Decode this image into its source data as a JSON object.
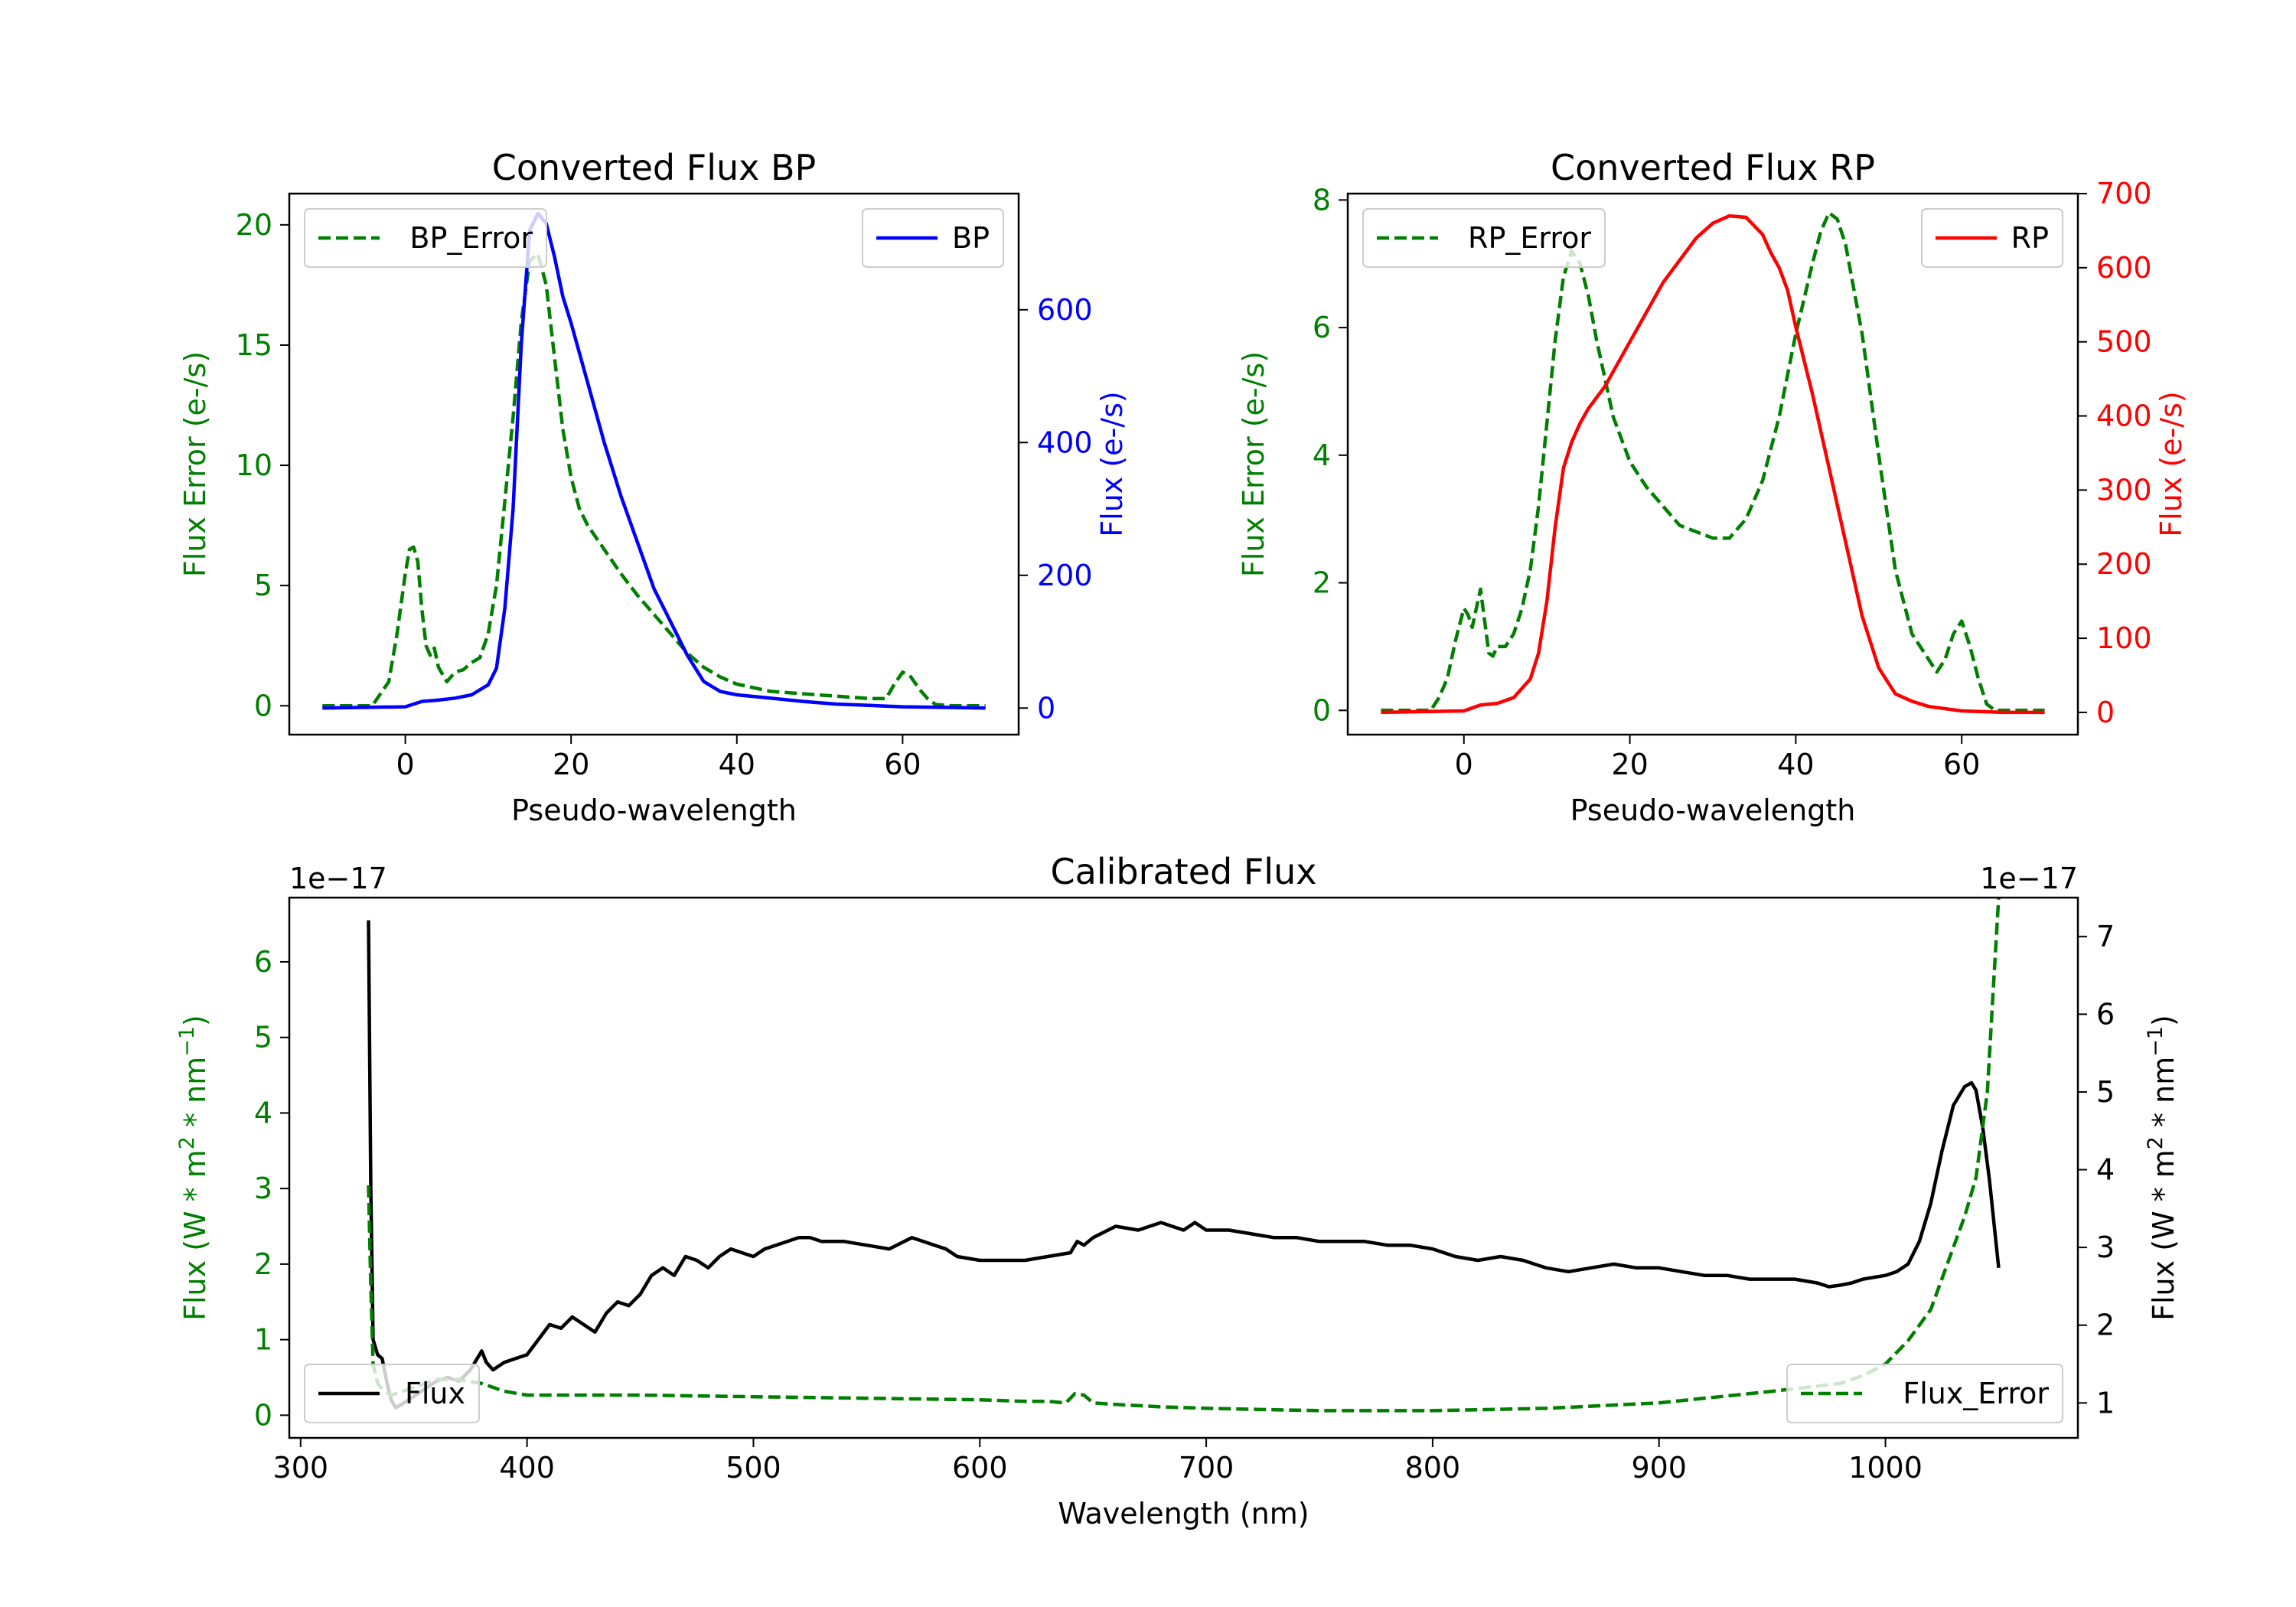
{
  "chart_data": [
    {
      "type": "line",
      "title": "Converted Flux BP",
      "xlabel": "Pseudo-wavelength",
      "ylabel_left": "Flux Error (e-/s)",
      "ylabel_right": "Flux (e-/s)",
      "xlim": [
        -14,
        74
      ],
      "ylim_left": [
        -1.2,
        21.3
      ],
      "ylim_right": [
        -40,
        775
      ],
      "xticks": [
        0,
        20,
        40,
        60
      ],
      "yticks_left": [
        0,
        5,
        10,
        15,
        20
      ],
      "yticks_right": [
        0,
        200,
        400,
        600
      ],
      "left_color": "#007f00",
      "right_color": "#0000ff",
      "legend_left": {
        "label": "BP_Error",
        "placement": "upper left",
        "style": "dashed",
        "color": "#007f00"
      },
      "legend_right": {
        "label": "BP",
        "placement": "upper right",
        "style": "solid",
        "color": "#0000ff"
      },
      "series": [
        {
          "name": "BP_Error",
          "axis": "left",
          "color": "#007f00",
          "dash": true,
          "x": [
            -10,
            -4,
            -2,
            -1,
            0,
            0.5,
            1,
            1.5,
            2,
            2.5,
            3,
            3.5,
            4,
            5,
            6,
            7,
            8,
            9,
            10,
            11,
            12,
            13,
            14,
            15,
            16,
            17,
            18,
            19,
            20,
            21,
            22,
            24,
            26,
            28,
            30,
            32,
            34,
            36,
            38,
            40,
            42,
            44,
            46,
            48,
            50,
            52,
            54,
            56,
            58,
            59,
            60,
            61,
            62,
            63,
            64,
            66,
            68,
            70
          ],
          "y": [
            0,
            0,
            1,
            3,
            5.5,
            6.5,
            6.6,
            6.0,
            4.0,
            2.5,
            2.1,
            2.4,
            1.6,
            1.0,
            1.4,
            1.5,
            1.8,
            2.0,
            3.0,
            5.0,
            8.5,
            12.0,
            16.0,
            18.5,
            18.8,
            17.5,
            14.5,
            11.5,
            9.5,
            8.2,
            7.5,
            6.5,
            5.5,
            4.6,
            3.8,
            3.0,
            2.2,
            1.6,
            1.2,
            0.9,
            0.75,
            0.6,
            0.55,
            0.5,
            0.45,
            0.4,
            0.35,
            0.3,
            0.3,
            0.9,
            1.4,
            1.2,
            0.7,
            0.3,
            0.05,
            0,
            0,
            0
          ]
        },
        {
          "name": "BP",
          "axis": "right",
          "color": "#0000ff",
          "dash": false,
          "x": [
            -10,
            0,
            2,
            4,
            6,
            8,
            10,
            11,
            12,
            13,
            14,
            15,
            16,
            17,
            18,
            19,
            20,
            22,
            24,
            26,
            28,
            30,
            32,
            34,
            36,
            38,
            40,
            44,
            48,
            52,
            56,
            60,
            65,
            70
          ],
          "y": [
            0,
            2,
            10,
            12,
            15,
            20,
            35,
            60,
            150,
            300,
            550,
            720,
            745,
            730,
            680,
            620,
            580,
            490,
            400,
            320,
            250,
            180,
            130,
            80,
            40,
            25,
            20,
            15,
            10,
            6,
            4,
            2,
            1,
            0
          ]
        }
      ]
    },
    {
      "type": "line",
      "title": "Converted Flux RP",
      "xlabel": "Pseudo-wavelength",
      "ylabel_left": "Flux Error (e-/s)",
      "ylabel_right": "Flux (e-/s)",
      "xlim": [
        -14,
        74
      ],
      "ylim_left": [
        -0.38,
        8.1
      ],
      "ylim_right": [
        -30,
        700
      ],
      "xticks": [
        0,
        20,
        40,
        60
      ],
      "yticks_left": [
        0,
        2,
        4,
        6,
        8
      ],
      "yticks_right": [
        0,
        100,
        200,
        300,
        400,
        500,
        600,
        700
      ],
      "left_color": "#007f00",
      "right_color": "#ff0000",
      "legend_left": {
        "label": "RP_Error",
        "placement": "upper left",
        "style": "dashed",
        "color": "#007f00"
      },
      "legend_right": {
        "label": "RP",
        "placement": "upper right",
        "style": "solid",
        "color": "#ff0000"
      },
      "series": [
        {
          "name": "RP_Error",
          "axis": "left",
          "color": "#007f00",
          "dash": true,
          "x": [
            -10,
            -4,
            -3,
            -2,
            -1,
            0,
            0.5,
            1,
            1.5,
            2,
            2.5,
            3,
            3.5,
            4,
            5,
            6,
            7,
            8,
            9,
            10,
            11,
            12,
            13,
            14,
            15,
            16,
            17,
            18,
            20,
            22,
            24,
            26,
            28,
            30,
            32,
            34,
            36,
            38,
            40,
            42,
            43,
            44,
            45,
            46,
            48,
            50,
            52,
            54,
            56,
            57,
            58,
            59,
            60,
            61,
            62,
            63,
            64,
            66,
            70
          ],
          "y": [
            0,
            0,
            0.2,
            0.5,
            1.1,
            1.6,
            1.5,
            1.3,
            1.6,
            1.9,
            1.4,
            0.9,
            0.85,
            1.0,
            1.0,
            1.2,
            1.6,
            2.2,
            3.2,
            4.5,
            5.8,
            6.8,
            7.2,
            7.0,
            6.5,
            5.8,
            5.2,
            4.6,
            3.9,
            3.5,
            3.2,
            2.9,
            2.8,
            2.7,
            2.7,
            3.0,
            3.6,
            4.6,
            5.9,
            7.0,
            7.5,
            7.8,
            7.7,
            7.3,
            5.9,
            4.0,
            2.2,
            1.2,
            0.8,
            0.6,
            0.8,
            1.2,
            1.4,
            1.0,
            0.5,
            0.1,
            0,
            0,
            0
          ]
        },
        {
          "name": "RP",
          "axis": "right",
          "color": "#ff0000",
          "dash": false,
          "x": [
            -10,
            0,
            2,
            4,
            6,
            8,
            9,
            10,
            11,
            12,
            13,
            14,
            15,
            17,
            20,
            22,
            24,
            26,
            28,
            30,
            32,
            34,
            36,
            37,
            38,
            39,
            40,
            42,
            44,
            46,
            48,
            50,
            52,
            54,
            56,
            60,
            65,
            70
          ],
          "y": [
            0,
            2,
            10,
            12,
            20,
            45,
            80,
            150,
            250,
            330,
            365,
            390,
            410,
            440,
            500,
            540,
            580,
            610,
            640,
            660,
            670,
            668,
            645,
            620,
            600,
            570,
            520,
            430,
            330,
            230,
            130,
            60,
            25,
            15,
            8,
            2,
            0,
            0
          ]
        }
      ]
    },
    {
      "type": "line",
      "title": "Calibrated Flux",
      "xlabel": "Wavelength (nm)",
      "ylabel_left": "Flux (W * m",
      "ylabel_right": "Flux (W * m",
      "ylabel_sup1": "2",
      "ylabel_mid": " * nm",
      "ylabel_sup2": "−1",
      "ylabel_end": ")",
      "offset_left": "1e−17",
      "offset_right": "1e−17",
      "xlim": [
        295,
        1085
      ],
      "ylim_left": [
        -0.3,
        6.85
      ],
      "ylim_right": [
        0.55,
        7.5
      ],
      "xticks": [
        300,
        400,
        500,
        600,
        700,
        800,
        900,
        1000
      ],
      "yticks_left": [
        0,
        1,
        2,
        3,
        4,
        5,
        6
      ],
      "yticks_right": [
        1,
        2,
        3,
        4,
        5,
        6,
        7
      ],
      "left_color": "#007f00",
      "right_color": "#000000",
      "legend_left": {
        "label": "Flux",
        "placement": "lower left",
        "style": "solid",
        "color": "#000000"
      },
      "legend_right": {
        "label": "Flux_Error",
        "placement": "lower right",
        "style": "dashed",
        "color": "#007f00"
      },
      "series": [
        {
          "name": "Flux",
          "axis": "left",
          "color": "#000000",
          "dash": false,
          "x": [
            330,
            331,
            332,
            334,
            336,
            338,
            340,
            342,
            345,
            350,
            355,
            360,
            365,
            370,
            375,
            378,
            380,
            382,
            385,
            390,
            395,
            400,
            405,
            410,
            415,
            420,
            425,
            430,
            435,
            440,
            445,
            450,
            455,
            460,
            465,
            470,
            475,
            480,
            485,
            490,
            495,
            500,
            505,
            510,
            515,
            520,
            525,
            530,
            540,
            550,
            560,
            570,
            575,
            580,
            585,
            590,
            600,
            610,
            620,
            630,
            640,
            643,
            646,
            650,
            660,
            670,
            680,
            690,
            695,
            700,
            710,
            720,
            730,
            740,
            750,
            760,
            770,
            780,
            790,
            800,
            810,
            820,
            830,
            840,
            850,
            860,
            870,
            880,
            890,
            900,
            910,
            920,
            930,
            940,
            950,
            960,
            970,
            975,
            980,
            985,
            990,
            1000,
            1005,
            1010,
            1015,
            1020,
            1025,
            1030,
            1035,
            1038,
            1040,
            1043,
            1046,
            1050
          ],
          "y": [
            6.55,
            3.0,
            1.0,
            0.8,
            0.75,
            0.45,
            0.2,
            0.1,
            0.15,
            0.25,
            0.35,
            0.45,
            0.5,
            0.45,
            0.6,
            0.75,
            0.85,
            0.7,
            0.6,
            0.7,
            0.75,
            0.8,
            1.0,
            1.2,
            1.15,
            1.3,
            1.2,
            1.1,
            1.35,
            1.5,
            1.45,
            1.6,
            1.85,
            1.95,
            1.85,
            2.1,
            2.05,
            1.95,
            2.1,
            2.2,
            2.15,
            2.1,
            2.2,
            2.25,
            2.3,
            2.35,
            2.35,
            2.3,
            2.3,
            2.25,
            2.2,
            2.35,
            2.3,
            2.25,
            2.2,
            2.1,
            2.05,
            2.05,
            2.05,
            2.1,
            2.15,
            2.3,
            2.25,
            2.35,
            2.5,
            2.45,
            2.55,
            2.45,
            2.55,
            2.45,
            2.45,
            2.4,
            2.35,
            2.35,
            2.3,
            2.3,
            2.3,
            2.25,
            2.25,
            2.2,
            2.1,
            2.05,
            2.1,
            2.05,
            1.95,
            1.9,
            1.95,
            2.0,
            1.95,
            1.95,
            1.9,
            1.85,
            1.85,
            1.8,
            1.8,
            1.8,
            1.75,
            1.7,
            1.72,
            1.75,
            1.8,
            1.85,
            1.9,
            2.0,
            2.3,
            2.8,
            3.5,
            4.1,
            4.35,
            4.4,
            4.3,
            3.8,
            3.1,
            1.95
          ]
        },
        {
          "name": "Flux_Error",
          "axis": "right",
          "color": "#007f00",
          "dash": true,
          "x": [
            330,
            331,
            332,
            334,
            337,
            340,
            345,
            350,
            360,
            370,
            380,
            390,
            400,
            420,
            450,
            500,
            550,
            600,
            620,
            630,
            638,
            642,
            646,
            650,
            660,
            680,
            700,
            750,
            800,
            850,
            900,
            950,
            980,
            990,
            1000,
            1005,
            1010,
            1015,
            1020,
            1025,
            1030,
            1035,
            1040,
            1045,
            1048,
            1050
          ],
          "y": [
            3.8,
            2.5,
            1.5,
            1.25,
            1.15,
            1.1,
            1.15,
            1.2,
            1.3,
            1.3,
            1.25,
            1.15,
            1.1,
            1.1,
            1.1,
            1.08,
            1.06,
            1.04,
            1.02,
            1.02,
            1.0,
            1.12,
            1.1,
            1.0,
            0.98,
            0.95,
            0.93,
            0.9,
            0.9,
            0.93,
            1.0,
            1.15,
            1.25,
            1.35,
            1.5,
            1.65,
            1.8,
            2.0,
            2.2,
            2.6,
            3.0,
            3.4,
            3.9,
            5.0,
            6.5,
            7.5
          ]
        }
      ]
    }
  ]
}
